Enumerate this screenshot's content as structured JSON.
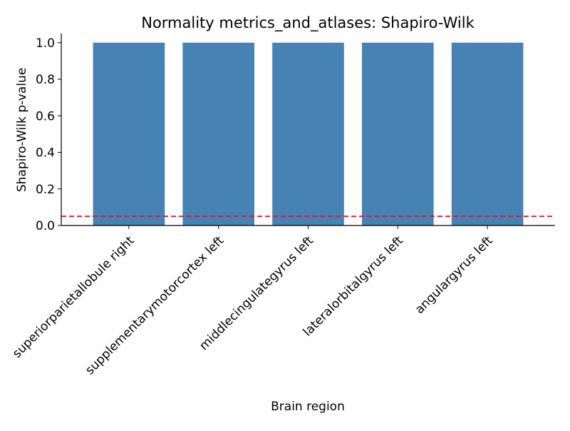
{
  "chart_data": {
    "type": "bar",
    "title": "Normality metrics_and_atlases: Shapiro-Wilk",
    "xlabel": "Brain region",
    "ylabel": "Shapiro-Wilk p-value",
    "categories": [
      "superiorparietallobule right",
      "supplementarymotorcortex left",
      "middlecingulategyrus left",
      "lateralorbitalgyrus left",
      "angulargyrus left"
    ],
    "values": [
      1.0,
      1.0,
      1.0,
      1.0,
      1.0
    ],
    "ylim": [
      0,
      1.05
    ],
    "yticks": [
      "0.0",
      "0.2",
      "0.4",
      "0.6",
      "0.8",
      "1.0"
    ],
    "threshold": 0.05,
    "grid": false,
    "colors": {
      "bar": "#4682b4",
      "threshold_line": "#e31a1c",
      "axis": "#000000"
    }
  }
}
